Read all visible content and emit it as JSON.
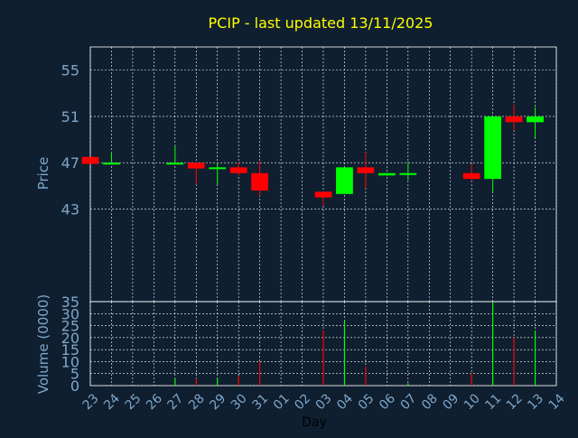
{
  "chart_data": {
    "type": "candlestick",
    "title": "PCIP - last updated 13/11/2025",
    "xlabel": "Day",
    "price_panel": {
      "ylabel": "Price",
      "ylim": [
        35,
        57
      ],
      "yticks": [
        43,
        47,
        51,
        55
      ],
      "grid": true
    },
    "volume_panel": {
      "ylabel": "Volume (0000)",
      "ylim": [
        0,
        35
      ],
      "yticks": [
        0,
        5,
        10,
        15,
        20,
        25,
        30,
        35
      ],
      "grid": true
    },
    "x_ticks": [
      "23",
      "24",
      "25",
      "26",
      "27",
      "28",
      "29",
      "30",
      "31",
      "01",
      "02",
      "03",
      "04",
      "05",
      "06",
      "07",
      "08",
      "09",
      "10",
      "11",
      "12",
      "13",
      "14"
    ],
    "candles": [
      {
        "day": "23",
        "open": 47.5,
        "high": 47.5,
        "low": 46.9,
        "close": 46.9,
        "volume": 0
      },
      {
        "day": "24",
        "open": 46.9,
        "high": 47.9,
        "low": 46.9,
        "close": 47.0,
        "volume": 0
      },
      {
        "day": "27",
        "open": 46.9,
        "high": 48.5,
        "low": 46.9,
        "close": 47.0,
        "volume": 3
      },
      {
        "day": "28",
        "open": 47.0,
        "high": 47.0,
        "low": 45.1,
        "close": 46.5,
        "volume": 3
      },
      {
        "day": "29",
        "open": 46.5,
        "high": 47.0,
        "low": 45.1,
        "close": 46.6,
        "volume": 3
      },
      {
        "day": "30",
        "open": 46.6,
        "high": 47.0,
        "low": 45.9,
        "close": 46.1,
        "volume": 4
      },
      {
        "day": "31",
        "open": 46.1,
        "high": 47.1,
        "low": 44.1,
        "close": 44.6,
        "volume": 10
      },
      {
        "day": "03",
        "open": 44.5,
        "high": 44.5,
        "low": 43.3,
        "close": 44.0,
        "volume": 23
      },
      {
        "day": "04",
        "open": 44.3,
        "high": 46.6,
        "low": 44.3,
        "close": 46.6,
        "volume": 27
      },
      {
        "day": "05",
        "open": 46.6,
        "high": 47.9,
        "low": 44.8,
        "close": 46.1,
        "volume": 8
      },
      {
        "day": "06",
        "open": 45.9,
        "high": 46.1,
        "low": 45.9,
        "close": 46.1,
        "volume": 0
      },
      {
        "day": "07",
        "open": 46.0,
        "high": 47.1,
        "low": 45.5,
        "close": 46.1,
        "volume": 1
      },
      {
        "day": "10",
        "open": 46.1,
        "high": 46.8,
        "low": 45.5,
        "close": 45.6,
        "volume": 5
      },
      {
        "day": "11",
        "open": 45.6,
        "high": 51.0,
        "low": 44.4,
        "close": 51.0,
        "volume": 35
      },
      {
        "day": "12",
        "open": 51.0,
        "high": 52.0,
        "low": 49.8,
        "close": 50.5,
        "volume": 20
      },
      {
        "day": "13",
        "open": 50.5,
        "high": 51.8,
        "low": 49.2,
        "close": 51.0,
        "volume": 23
      }
    ],
    "colors": {
      "background": "#0f1f30",
      "up": "#00ff00",
      "down": "#ff0000",
      "grid": "#ffffff",
      "axis_text": "#7ea6c9",
      "title": "#ffff00",
      "xlabel": "#000000"
    }
  }
}
